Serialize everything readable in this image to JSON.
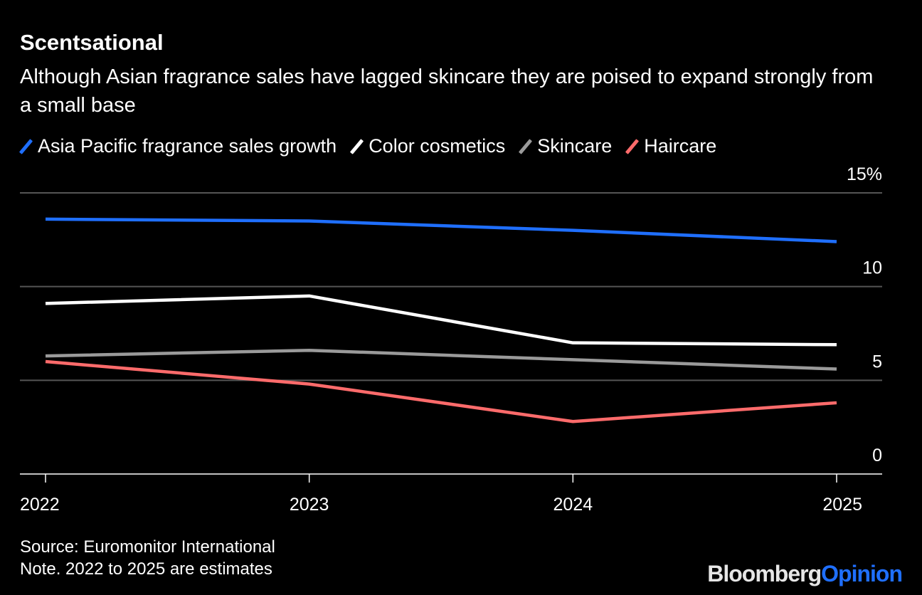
{
  "title": "Scentsational",
  "subtitle": "Although Asian fragrance sales have lagged skincare they are poised to expand strongly from a small base",
  "source": "Source: Euromonitor International",
  "note": "Note. 2022 to 2025 are estimates",
  "logo": {
    "part1": "Bloomberg",
    "part2": "Opinion"
  },
  "chart_data": {
    "type": "line",
    "title": "Scentsational",
    "x": [
      "2022",
      "2023",
      "2024",
      "2025"
    ],
    "ylim": [
      0,
      15
    ],
    "yticks": [
      0,
      5,
      10,
      15
    ],
    "ytick_labels": [
      "0",
      "5",
      "10",
      "15%"
    ],
    "grid": true,
    "legend": "top-left",
    "series": [
      {
        "name": "Asia Pacific fragrance sales growth",
        "color": "#1f6fff",
        "values": [
          13.6,
          13.5,
          13.0,
          12.4
        ]
      },
      {
        "name": "Color cosmetics",
        "color": "#ffffff",
        "values": [
          9.1,
          9.5,
          7.0,
          6.9
        ]
      },
      {
        "name": "Skincare",
        "color": "#9a9a9a",
        "values": [
          6.3,
          6.6,
          6.1,
          5.6
        ]
      },
      {
        "name": "Haircare",
        "color": "#ff6b6b",
        "values": [
          6.0,
          4.8,
          2.8,
          3.8
        ]
      }
    ]
  }
}
